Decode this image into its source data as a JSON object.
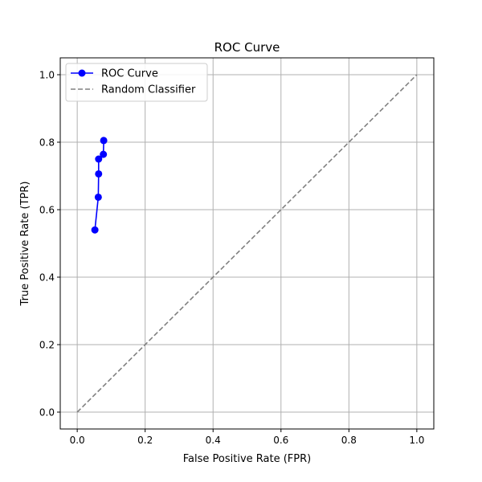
{
  "chart_data": {
    "type": "line",
    "title": "ROC Curve",
    "xlabel": "False Positive Rate (FPR)",
    "ylabel": "True Positive Rate (TPR)",
    "xlim": [
      -0.05,
      1.05
    ],
    "ylim": [
      -0.05,
      1.05
    ],
    "xticks": [
      "0.0",
      "0.2",
      "0.4",
      "0.6",
      "0.8",
      "1.0"
    ],
    "yticks": [
      "0.0",
      "0.2",
      "0.4",
      "0.6",
      "0.8",
      "1.0"
    ],
    "grid": true,
    "legend_position": "top-left",
    "series": [
      {
        "name": "ROC Curve",
        "color": "#0000ff",
        "style": "solid-markers",
        "x": [
          0.052,
          0.062,
          0.063,
          0.063,
          0.077,
          0.078
        ],
        "y": [
          0.54,
          0.637,
          0.706,
          0.75,
          0.764,
          0.805
        ]
      },
      {
        "name": "Random Classifier",
        "color": "#808080",
        "style": "dashed",
        "x": [
          0,
          1
        ],
        "y": [
          0,
          1
        ]
      }
    ]
  }
}
